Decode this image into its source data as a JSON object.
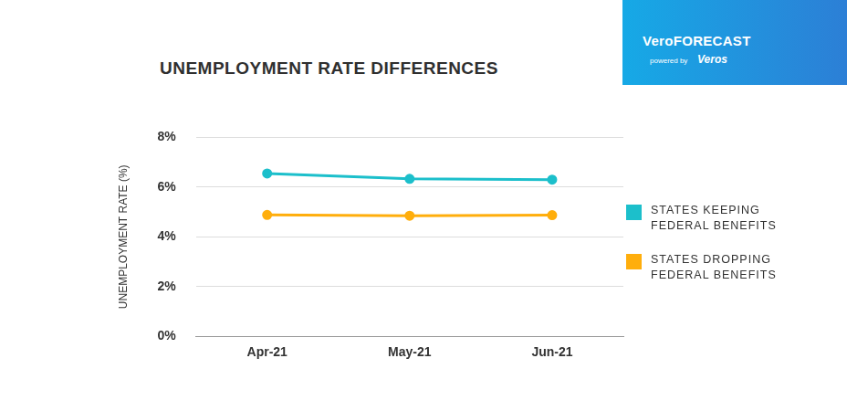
{
  "brand": {
    "name": "VeroFORECAST",
    "tagline": "powered by",
    "logo": "Veros"
  },
  "chart_data": {
    "type": "line",
    "title": "UNEMPLOYMENT RATE DIFFERENCES",
    "y_label": "UNEMPLOYMENT RATE (%)",
    "categories": [
      "Apr-21",
      "May-21",
      "Jun-21"
    ],
    "series": [
      {
        "name": "STATES KEEPING FEDERAL BENEFITS",
        "color": "#1cbfcb",
        "values": [
          6.55,
          6.33,
          6.3
        ]
      },
      {
        "name": "STATES DROPPING FEDERAL BENEFITS",
        "color": "#ffae0c",
        "values": [
          4.88,
          4.85,
          4.87
        ]
      }
    ],
    "ylim": [
      0,
      8
    ],
    "yticks": [
      {
        "value": 0,
        "label": "0%"
      },
      {
        "value": 2,
        "label": "2%"
      },
      {
        "value": 4,
        "label": "4%"
      },
      {
        "value": 6,
        "label": "6%"
      },
      {
        "value": 8,
        "label": "8%"
      }
    ],
    "grid": true,
    "legend": "right",
    "marker": "circle",
    "line_style": "solid"
  }
}
